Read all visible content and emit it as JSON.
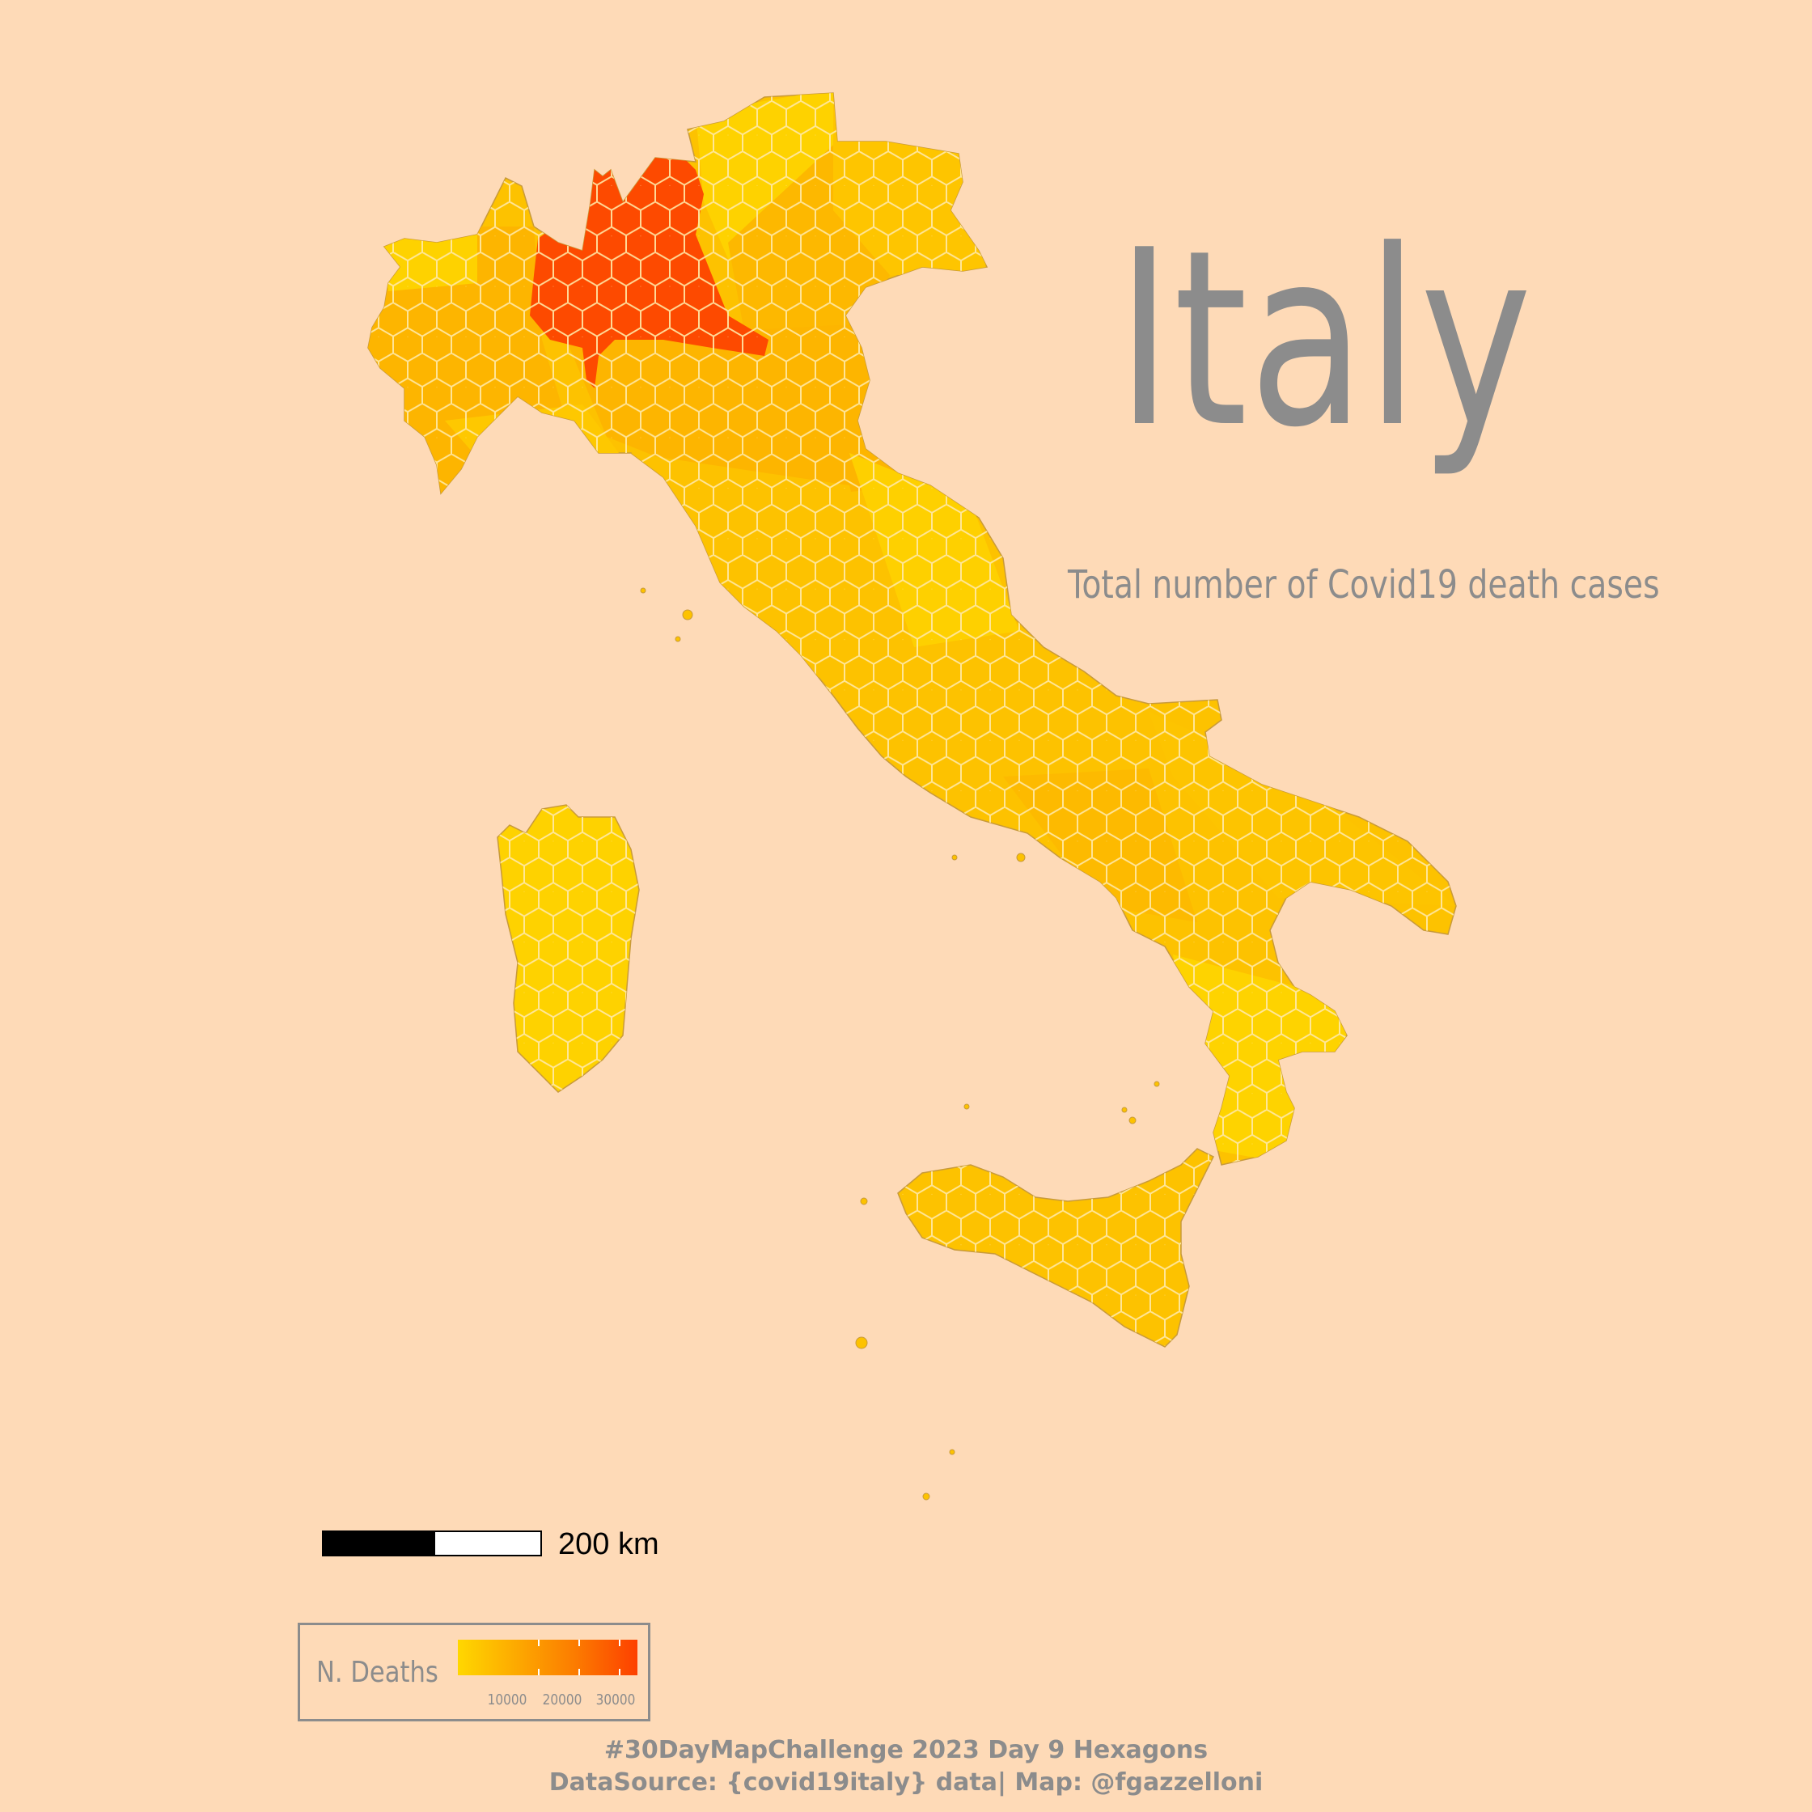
{
  "map": {
    "title": "Italy",
    "subtitle": "Total number of Covid19 death cases",
    "scale_label": "200 km",
    "legend": {
      "title": "N. Deaths",
      "ticks": [
        "10000",
        "20000",
        "30000"
      ],
      "color_low": "#ffd700",
      "color_high": "#fd4000"
    },
    "caption_line1": "#30DayMapChallenge 2023 Day 9 Hexagons",
    "caption_line2": "DataSource: {covid19italy} data| Map: @fgazzelloni",
    "colors": {
      "background": "#fedab7",
      "lombardy": "#fd4a00",
      "high": "#fdb500",
      "mid": "#fdc200",
      "low": "#fed200",
      "hex_line": "#ffe9a8",
      "text": "#8c8c8c"
    }
  }
}
